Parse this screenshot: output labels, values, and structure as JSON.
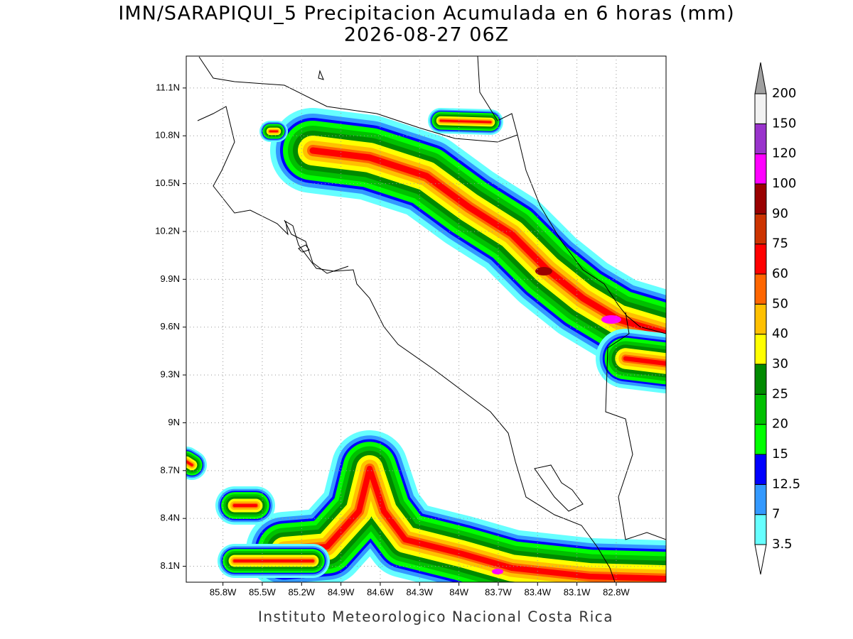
{
  "title": "IMN/SARAPIQUI_5 Precipitacion Acumulada en 6 horas (mm)",
  "subtitle": "2026-08-27 06Z",
  "map": {
    "xlim": [
      -86.08,
      -82.42
    ],
    "ylim": [
      8.0,
      11.3
    ],
    "lon_ticks": [
      {
        "value": -85.8,
        "label": "85.8W"
      },
      {
        "value": -85.5,
        "label": "85.5W"
      },
      {
        "value": -85.2,
        "label": "85.2W"
      },
      {
        "value": -84.9,
        "label": "84.9W"
      },
      {
        "value": -84.6,
        "label": "84.6W"
      },
      {
        "value": -84.3,
        "label": "84.3W"
      },
      {
        "value": -84.0,
        "label": "84W"
      },
      {
        "value": -83.7,
        "label": "83.7W"
      },
      {
        "value": -83.4,
        "label": "83.4W"
      },
      {
        "value": -83.1,
        "label": "83.1W"
      },
      {
        "value": -82.8,
        "label": "82.8W"
      }
    ],
    "lat_ticks": [
      {
        "value": 8.1,
        "label": "8.1N"
      },
      {
        "value": 8.4,
        "label": "8.4N"
      },
      {
        "value": 8.7,
        "label": "8.7N"
      },
      {
        "value": 9.0,
        "label": "9N"
      },
      {
        "value": 9.3,
        "label": "9.3N"
      },
      {
        "value": 9.6,
        "label": "9.6N"
      },
      {
        "value": 9.9,
        "label": "9.9N"
      },
      {
        "value": 10.2,
        "label": "10.2N"
      },
      {
        "value": 10.5,
        "label": "10.5N"
      },
      {
        "value": 10.8,
        "label": "10.8N"
      },
      {
        "value": 11.1,
        "label": "11.1N"
      }
    ]
  },
  "colorbar": {
    "levels": [
      3.5,
      7,
      12.5,
      15,
      20,
      25,
      30,
      40,
      50,
      60,
      75,
      90,
      100,
      120,
      150,
      200
    ],
    "colors": [
      "#ffffff",
      "#66ffff",
      "#3399ff",
      "#0000ff",
      "#00ff00",
      "#00c000",
      "#008a00",
      "#ffff00",
      "#ffc000",
      "#ff6600",
      "#ff0000",
      "#cc3300",
      "#990000",
      "#ff00ff",
      "#9933cc",
      "#f2f2f2",
      "#a0a0a0"
    ]
  },
  "footer": "Instituto Meteorologico Nacional Costa Rica"
}
